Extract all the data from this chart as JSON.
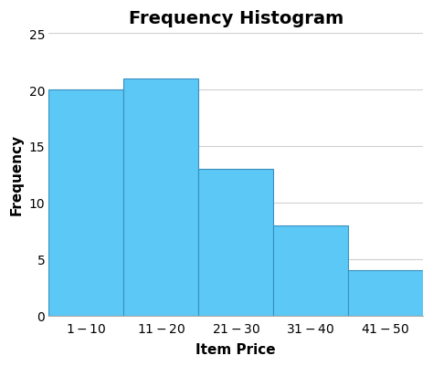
{
  "title": "Frequency Histogram",
  "xlabel": "Item Price",
  "ylabel": "Frequency",
  "categories": [
    "$1 - $10",
    "$11 - $20",
    "$21 - $30",
    "$31 - $40",
    "$41 - $50"
  ],
  "values": [
    20,
    21,
    13,
    8,
    4
  ],
  "bar_color": "#5BC8F5",
  "bar_edge_color": "#3A8FBF",
  "ylim": [
    0,
    25
  ],
  "yticks": [
    0,
    5,
    10,
    15,
    20,
    25
  ],
  "background_color": "#ffffff",
  "grid_color": "#d0d0d0",
  "title_fontsize": 14,
  "label_fontsize": 11,
  "tick_fontsize": 10
}
